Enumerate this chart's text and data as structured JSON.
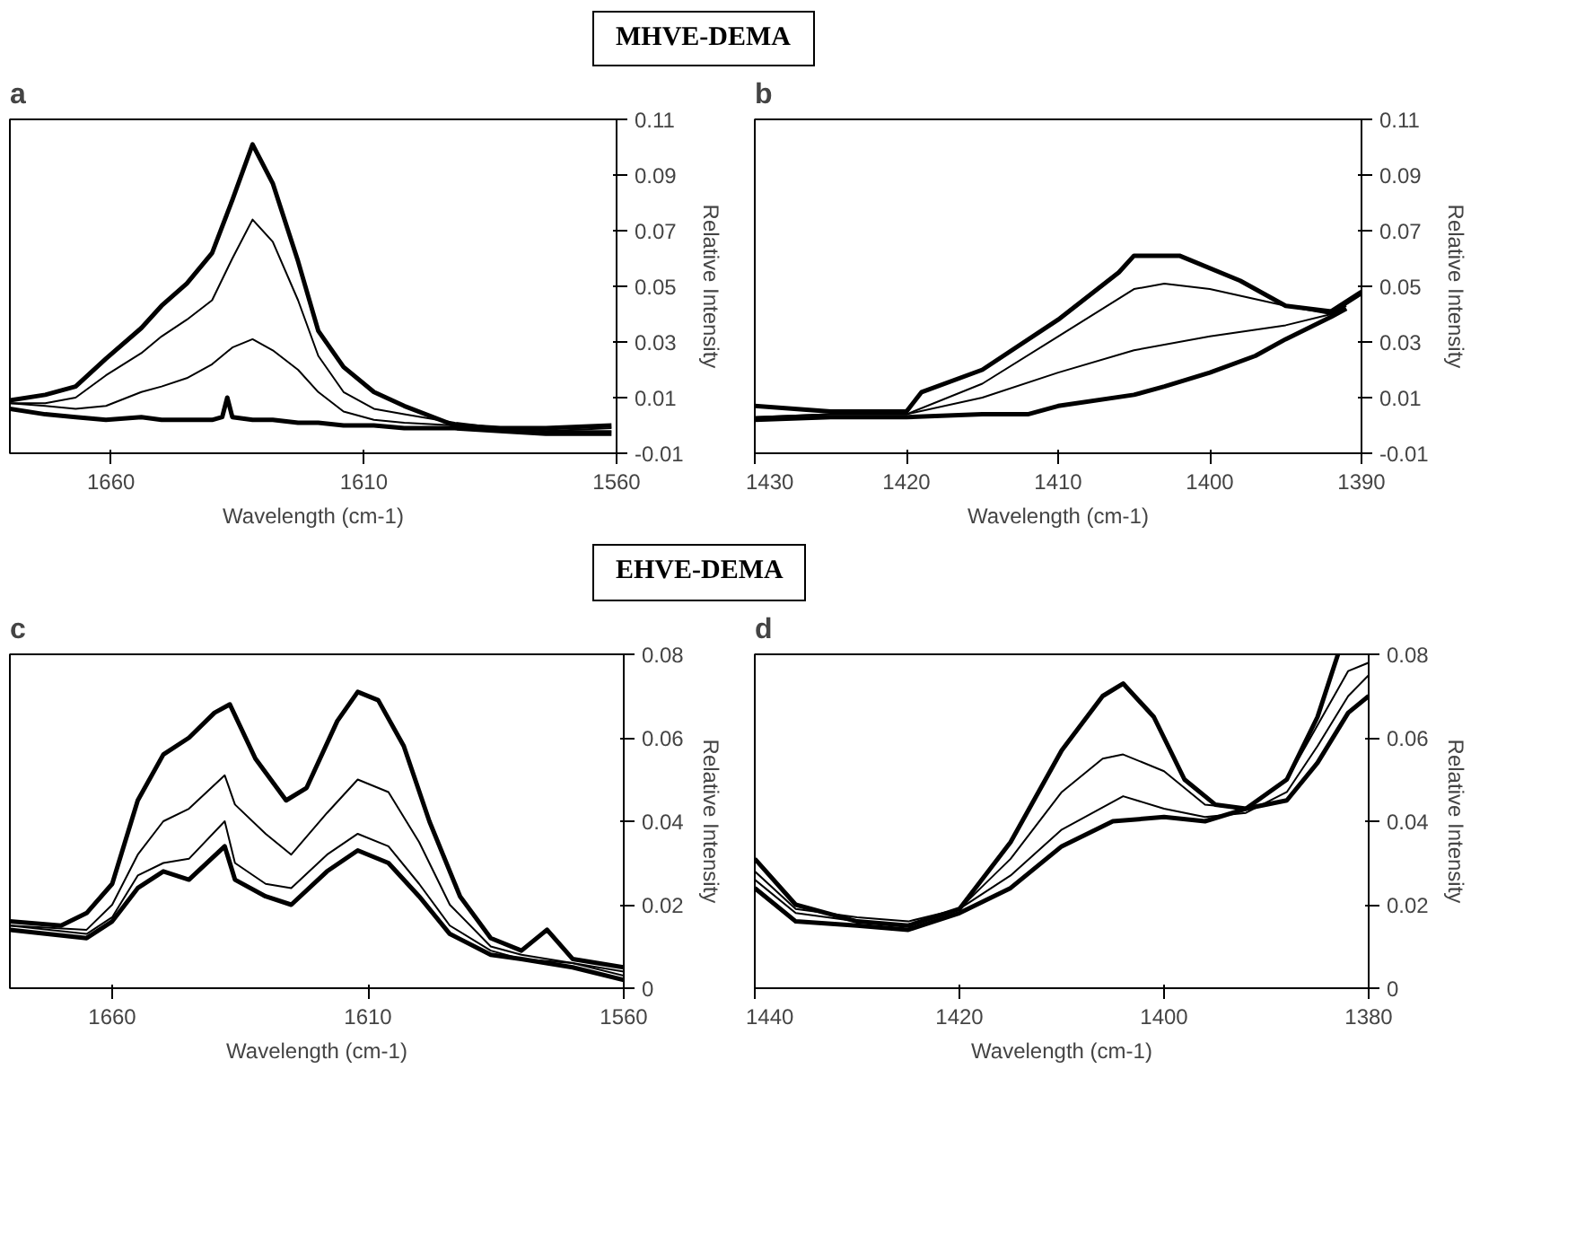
{
  "chart_data": [
    {
      "type": "line",
      "title": "a",
      "annotations": [
        "MHVE-DEMA"
      ],
      "xlabel": "Wavelength (cm-1)",
      "ylabel": "Relative Intensity",
      "xlim": [
        1680,
        1560
      ],
      "xticks": [
        1660,
        1610,
        1560
      ],
      "ylim": [
        -0.01,
        0.11
      ],
      "yticks": [
        -0.01,
        0.01,
        0.03,
        0.05,
        0.07,
        0.09,
        0.11
      ],
      "grid": false,
      "series": [
        {
          "color": "#000000",
          "x": [
            1680,
            1673,
            1667,
            1661,
            1654,
            1650,
            1645,
            1640,
            1636,
            1632,
            1628,
            1623,
            1619,
            1614,
            1608,
            1602,
            1592,
            1583,
            1574,
            1561
          ],
          "values": [
            0.009,
            0.011,
            0.014,
            0.024,
            0.035,
            0.043,
            0.051,
            0.062,
            0.081,
            0.101,
            0.087,
            0.059,
            0.034,
            0.021,
            0.012,
            0.007,
            0.0,
            -0.001,
            -0.001,
            0.0
          ]
        },
        {
          "color": "#000000",
          "x": [
            1680,
            1673,
            1667,
            1661,
            1654,
            1650,
            1645,
            1640,
            1636,
            1632,
            1628,
            1623,
            1619,
            1614,
            1608,
            1602,
            1592,
            1583,
            1574,
            1561
          ],
          "values": [
            0.008,
            0.008,
            0.01,
            0.018,
            0.026,
            0.032,
            0.038,
            0.045,
            0.06,
            0.074,
            0.066,
            0.045,
            0.025,
            0.012,
            0.006,
            0.004,
            0.001,
            -0.001,
            -0.002,
            -0.001
          ]
        },
        {
          "color": "#000000",
          "x": [
            1680,
            1673,
            1667,
            1661,
            1654,
            1650,
            1645,
            1640,
            1636,
            1632,
            1628,
            1623,
            1619,
            1614,
            1608,
            1602,
            1592,
            1583,
            1574,
            1561
          ],
          "values": [
            0.008,
            0.007,
            0.006,
            0.007,
            0.012,
            0.014,
            0.017,
            0.022,
            0.028,
            0.031,
            0.027,
            0.02,
            0.012,
            0.005,
            0.002,
            0.001,
            0.0,
            -0.001,
            -0.002,
            -0.002
          ]
        },
        {
          "color": "#000000",
          "x": [
            1680,
            1673,
            1667,
            1661,
            1654,
            1650,
            1645,
            1640,
            1638,
            1637,
            1636,
            1632,
            1628,
            1623,
            1619,
            1614,
            1608,
            1602,
            1592,
            1583,
            1574,
            1561
          ],
          "values": [
            0.006,
            0.004,
            0.003,
            0.002,
            0.003,
            0.002,
            0.002,
            0.002,
            0.003,
            0.01,
            0.003,
            0.002,
            0.002,
            0.001,
            0.001,
            0.0,
            0.0,
            -0.001,
            -0.001,
            -0.002,
            -0.003,
            -0.003
          ]
        }
      ]
    },
    {
      "type": "line",
      "title": "b",
      "xlabel": "Wavelength (cm-1)",
      "ylabel": "Relative Intensity",
      "xlim": [
        1430,
        1390
      ],
      "xticks": [
        1430,
        1420,
        1410,
        1400,
        1390
      ],
      "ylim": [
        -0.01,
        0.11
      ],
      "yticks": [
        -0.01,
        0.01,
        0.03,
        0.05,
        0.07,
        0.09,
        0.11
      ],
      "grid": false,
      "series": [
        {
          "color": "#000000",
          "x": [
            1430,
            1425,
            1420,
            1419,
            1415,
            1410,
            1406,
            1405,
            1402,
            1398,
            1395,
            1392,
            1390
          ],
          "values": [
            0.007,
            0.005,
            0.005,
            0.012,
            0.02,
            0.038,
            0.055,
            0.061,
            0.061,
            0.052,
            0.043,
            0.041,
            0.048
          ]
        },
        {
          "color": "#000000",
          "x": [
            1430,
            1425,
            1420,
            1415,
            1410,
            1405,
            1403,
            1400,
            1395,
            1392,
            1390
          ],
          "values": [
            0.003,
            0.004,
            0.004,
            0.015,
            0.032,
            0.049,
            0.051,
            0.049,
            0.043,
            0.04,
            0.047
          ]
        },
        {
          "color": "#000000",
          "x": [
            1430,
            1425,
            1420,
            1415,
            1410,
            1405,
            1400,
            1395,
            1392,
            1391
          ],
          "values": [
            0.003,
            0.004,
            0.004,
            0.01,
            0.019,
            0.027,
            0.032,
            0.036,
            0.04,
            0.043
          ]
        },
        {
          "color": "#000000",
          "x": [
            1430,
            1425,
            1420,
            1415,
            1412,
            1410,
            1405,
            1403,
            1400,
            1397,
            1395,
            1392,
            1391
          ],
          "values": [
            0.002,
            0.003,
            0.003,
            0.004,
            0.004,
            0.007,
            0.011,
            0.014,
            0.019,
            0.025,
            0.031,
            0.039,
            0.042
          ]
        }
      ]
    },
    {
      "type": "line",
      "title": "c",
      "annotations": [
        "EHVE-DEMA"
      ],
      "xlabel": "Wavelength (cm-1)",
      "ylabel": "Relative Intensity",
      "xlim": [
        1680,
        1560
      ],
      "xticks": [
        1660,
        1610,
        1560
      ],
      "ylim": [
        0,
        0.08
      ],
      "yticks": [
        0,
        0.02,
        0.04,
        0.06,
        0.08
      ],
      "grid": false,
      "series": [
        {
          "color": "#000000",
          "x": [
            1680,
            1670,
            1665,
            1660,
            1655,
            1650,
            1645,
            1640,
            1637,
            1632,
            1626,
            1622,
            1616,
            1612,
            1608,
            1603,
            1598,
            1592,
            1586,
            1580,
            1575,
            1570,
            1560
          ],
          "values": [
            0.016,
            0.015,
            0.018,
            0.025,
            0.045,
            0.056,
            0.06,
            0.066,
            0.068,
            0.055,
            0.045,
            0.048,
            0.064,
            0.071,
            0.069,
            0.058,
            0.04,
            0.022,
            0.012,
            0.009,
            0.014,
            0.007,
            0.005
          ]
        },
        {
          "color": "#000000",
          "x": [
            1680,
            1665,
            1660,
            1655,
            1650,
            1645,
            1638,
            1636,
            1630,
            1625,
            1618,
            1612,
            1606,
            1600,
            1594,
            1586,
            1580,
            1570,
            1560
          ],
          "values": [
            0.015,
            0.014,
            0.02,
            0.032,
            0.04,
            0.043,
            0.051,
            0.044,
            0.037,
            0.032,
            0.042,
            0.05,
            0.047,
            0.035,
            0.02,
            0.01,
            0.008,
            0.006,
            0.004
          ]
        },
        {
          "color": "#000000",
          "x": [
            1680,
            1665,
            1660,
            1655,
            1650,
            1645,
            1638,
            1636,
            1630,
            1625,
            1618,
            1612,
            1606,
            1600,
            1594,
            1586,
            1580,
            1570,
            1560
          ],
          "values": [
            0.015,
            0.013,
            0.017,
            0.027,
            0.03,
            0.031,
            0.04,
            0.03,
            0.025,
            0.024,
            0.032,
            0.037,
            0.034,
            0.025,
            0.015,
            0.009,
            0.007,
            0.006,
            0.003
          ]
        },
        {
          "color": "#000000",
          "x": [
            1680,
            1665,
            1660,
            1655,
            1650,
            1645,
            1638,
            1636,
            1630,
            1625,
            1618,
            1612,
            1606,
            1600,
            1594,
            1586,
            1580,
            1570,
            1560
          ],
          "values": [
            0.014,
            0.012,
            0.016,
            0.024,
            0.028,
            0.026,
            0.034,
            0.026,
            0.022,
            0.02,
            0.028,
            0.033,
            0.03,
            0.022,
            0.013,
            0.008,
            0.007,
            0.005,
            0.002
          ]
        }
      ]
    },
    {
      "type": "line",
      "title": "d",
      "xlabel": "Wavelength (cm-1)",
      "ylabel": "Relative Intensity",
      "xlim": [
        1440,
        1380
      ],
      "xticks": [
        1440,
        1420,
        1400,
        1380
      ],
      "ylim": [
        0,
        0.08
      ],
      "yticks": [
        0,
        0.02,
        0.04,
        0.06,
        0.08
      ],
      "grid": false,
      "series": [
        {
          "color": "#000000",
          "x": [
            1440,
            1436,
            1430,
            1425,
            1420,
            1415,
            1410,
            1406,
            1404,
            1401,
            1398,
            1395,
            1392,
            1388,
            1385,
            1383
          ],
          "values": [
            0.031,
            0.02,
            0.016,
            0.015,
            0.019,
            0.035,
            0.057,
            0.07,
            0.073,
            0.065,
            0.05,
            0.044,
            0.043,
            0.05,
            0.065,
            0.08
          ]
        },
        {
          "color": "#000000",
          "x": [
            1440,
            1436,
            1430,
            1425,
            1420,
            1415,
            1410,
            1406,
            1404,
            1400,
            1396,
            1392,
            1388,
            1385,
            1382,
            1380
          ],
          "values": [
            0.028,
            0.019,
            0.017,
            0.016,
            0.019,
            0.031,
            0.047,
            0.055,
            0.056,
            0.052,
            0.044,
            0.043,
            0.05,
            0.063,
            0.076,
            0.078
          ]
        },
        {
          "color": "#000000",
          "x": [
            1440,
            1436,
            1430,
            1425,
            1420,
            1415,
            1410,
            1404,
            1400,
            1396,
            1392,
            1388,
            1385,
            1382,
            1380
          ],
          "values": [
            0.026,
            0.018,
            0.016,
            0.015,
            0.019,
            0.027,
            0.038,
            0.046,
            0.043,
            0.041,
            0.042,
            0.047,
            0.058,
            0.07,
            0.075
          ]
        },
        {
          "color": "#000000",
          "x": [
            1440,
            1436,
            1430,
            1425,
            1420,
            1415,
            1410,
            1405,
            1400,
            1396,
            1392,
            1388,
            1385,
            1382,
            1380
          ],
          "values": [
            0.024,
            0.016,
            0.015,
            0.014,
            0.018,
            0.024,
            0.034,
            0.04,
            0.041,
            0.04,
            0.043,
            0.045,
            0.054,
            0.066,
            0.07
          ]
        }
      ]
    }
  ]
}
